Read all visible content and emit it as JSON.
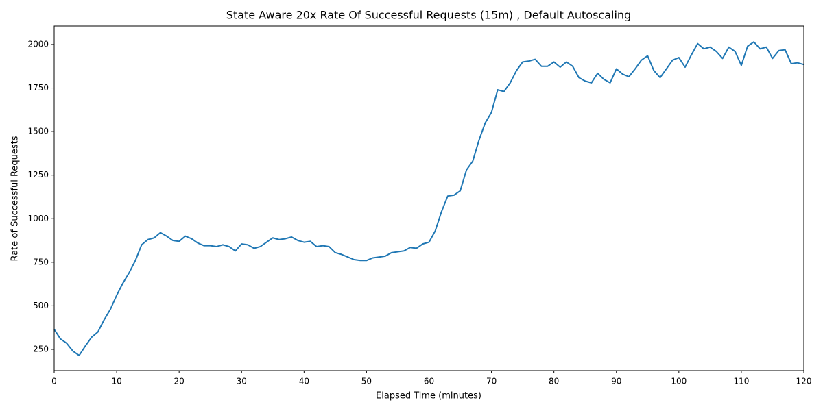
{
  "chart_data": {
    "type": "line",
    "title": "State Aware 20x Rate Of Successful Requests (15m) , Default Autoscaling",
    "x_label": "Elapsed Time (minutes)",
    "y_label": "Rate of Successful Requests",
    "color": "#1f77b4",
    "x": [
      0,
      1,
      2,
      3,
      4,
      5,
      6,
      7,
      8,
      9,
      10,
      11,
      12,
      13,
      14,
      15,
      16,
      17,
      18,
      19,
      20,
      21,
      22,
      23,
      24,
      25,
      26,
      27,
      28,
      29,
      30,
      31,
      32,
      33,
      34,
      35,
      36,
      37,
      38,
      39,
      40,
      41,
      42,
      43,
      44,
      45,
      46,
      47,
      48,
      49,
      50,
      51,
      52,
      53,
      54,
      55,
      56,
      57,
      58,
      59,
      60,
      61,
      62,
      63,
      64,
      65,
      66,
      67,
      68,
      69,
      70,
      71,
      72,
      73,
      74,
      75,
      76,
      77,
      78,
      79,
      80,
      81,
      82,
      83,
      84,
      85,
      86,
      87,
      88,
      89,
      90,
      91,
      92,
      93,
      94,
      95,
      96,
      97,
      98,
      99,
      100,
      101,
      102,
      103,
      104,
      105,
      106,
      107,
      108,
      109,
      110,
      111,
      112,
      113,
      114,
      115,
      116,
      117,
      118,
      119,
      120
    ],
    "values": [
      365,
      310,
      285,
      240,
      215,
      270,
      320,
      350,
      420,
      480,
      560,
      630,
      690,
      760,
      850,
      880,
      890,
      920,
      900,
      875,
      870,
      900,
      885,
      860,
      845,
      845,
      840,
      850,
      840,
      815,
      855,
      850,
      830,
      840,
      865,
      890,
      880,
      885,
      895,
      875,
      865,
      870,
      840,
      845,
      840,
      805,
      795,
      780,
      765,
      760,
      760,
      775,
      780,
      785,
      805,
      810,
      815,
      835,
      830,
      855,
      865,
      930,
      1040,
      1130,
      1135,
      1160,
      1280,
      1330,
      1450,
      1550,
      1610,
      1740,
      1730,
      1780,
      1850,
      1900,
      1905,
      1915,
      1875,
      1875,
      1900,
      1870,
      1900,
      1875,
      1810,
      1790,
      1780,
      1835,
      1800,
      1780,
      1860,
      1830,
      1815,
      1860,
      1910,
      1935,
      1850,
      1810,
      1860,
      1910,
      1925,
      1870,
      1940,
      2005,
      1975,
      1985,
      1960,
      1920,
      1985,
      1960,
      1880,
      1990,
      2015,
      1975,
      1985,
      1920,
      1965,
      1970,
      1890,
      1895,
      1885
    ],
    "xlim": [
      0,
      120
    ],
    "xticks": [
      0,
      10,
      20,
      30,
      40,
      50,
      60,
      70,
      80,
      90,
      100,
      110,
      120
    ],
    "ylim": [
      128,
      2106
    ],
    "yticks": [
      250,
      500,
      750,
      1000,
      1250,
      1500,
      1750,
      2000
    ],
    "grid": false
  }
}
